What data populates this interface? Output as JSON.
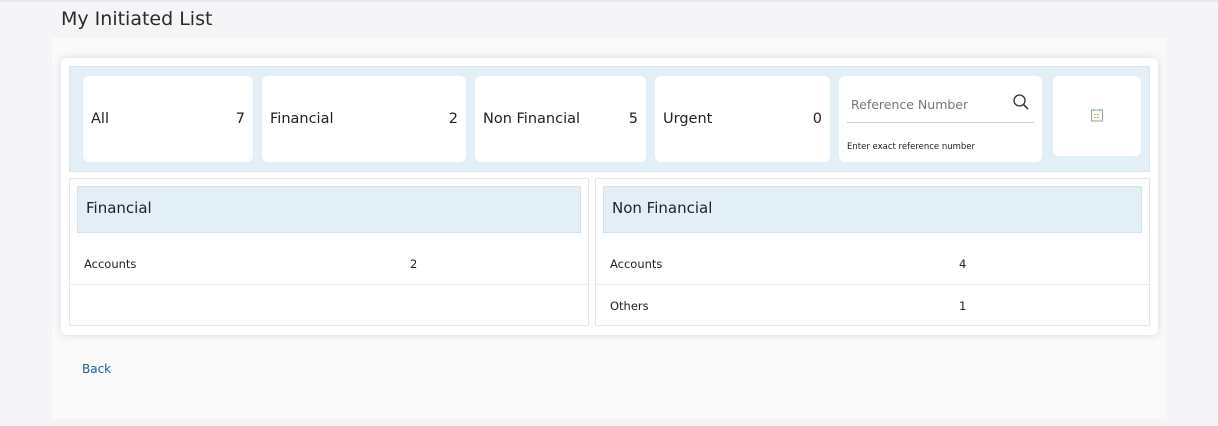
{
  "page": {
    "title": "My Initiated List",
    "back_label": "Back"
  },
  "filters": [
    {
      "label": "All",
      "count": "7"
    },
    {
      "label": "Financial",
      "count": "2"
    },
    {
      "label": "Non Financial",
      "count": "5"
    },
    {
      "label": "Urgent",
      "count": "0"
    }
  ],
  "search": {
    "placeholder": "Reference Number",
    "hint": "Enter exact reference number",
    "icon": "search-icon"
  },
  "calendar": {
    "icon": "calendar-icon"
  },
  "financial": {
    "title": "Financial",
    "rows": [
      {
        "label": "Accounts",
        "count": "2"
      }
    ]
  },
  "non_financial": {
    "title": "Non Financial",
    "rows": [
      {
        "label": "Accounts",
        "count": "4"
      },
      {
        "label": "Others",
        "count": "1"
      }
    ]
  },
  "colors": {
    "strip": "#e3eff6",
    "link": "#1f5f9a"
  }
}
